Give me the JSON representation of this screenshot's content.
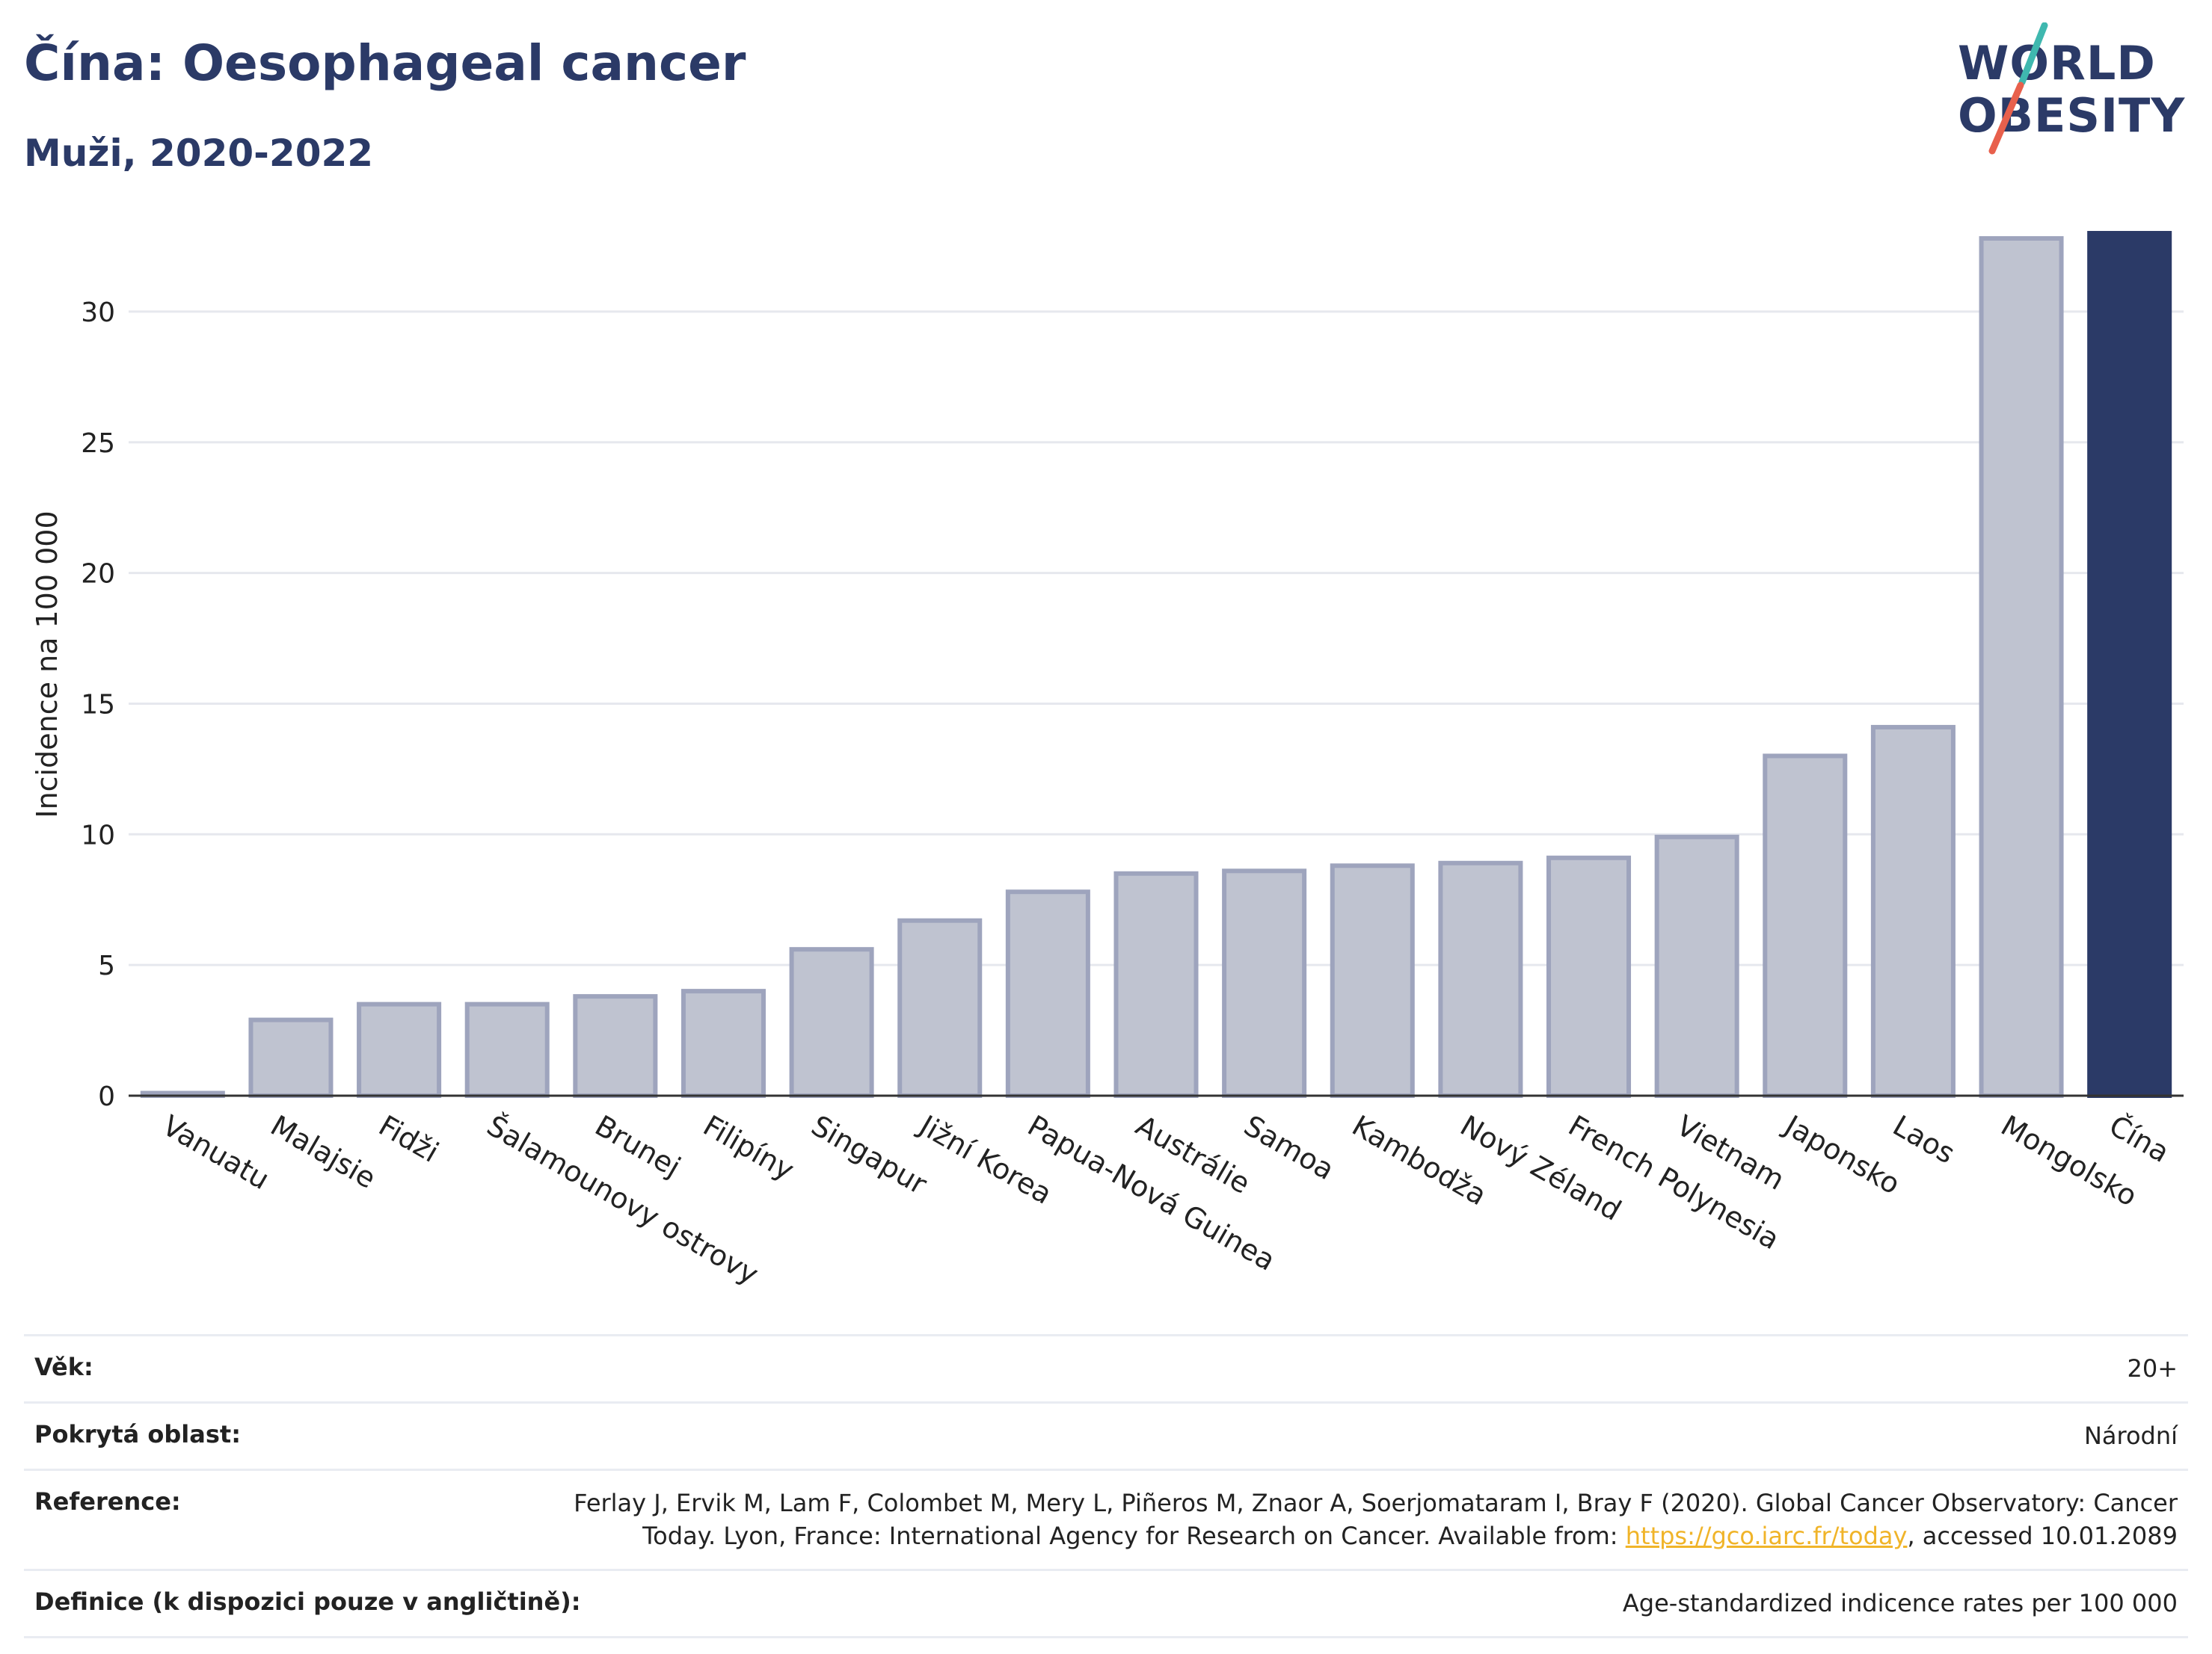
{
  "header": {
    "title": "Čína: Oesophageal cancer",
    "subtitle": "Muži, 2020-2022"
  },
  "logo": {
    "line1": "WORLD",
    "line2": "OBESITY",
    "slash_colors": [
      "#3fb8af",
      "#e8604c"
    ]
  },
  "colors": {
    "bar_default": "#bfc3d0",
    "bar_stroke": "#9ea4bd",
    "bar_highlight": "#2b3a67",
    "grid": "#e6e8ee",
    "axis": "#333333"
  },
  "chart_data": {
    "type": "bar",
    "title": "Čína: Oesophageal cancer",
    "subtitle": "Muži, 2020-2022",
    "ylabel": "Incidence na 100 000",
    "xlabel": "",
    "ylim": [
      0,
      33
    ],
    "yticks": [
      0,
      5,
      10,
      15,
      20,
      25,
      30
    ],
    "grid": true,
    "highlight": "Čína",
    "categories": [
      "Vanuatu",
      "Malajsie",
      "Fidži",
      "Šalamounovy ostrovy",
      "Brunej",
      "Filipíny",
      "Singapur",
      "Jižní Korea",
      "Papua-Nová Guinea",
      "Austrálie",
      "Samoa",
      "Kambodža",
      "Nový Zéland",
      "French Polynesia",
      "Vietnam",
      "Japonsko",
      "Laos",
      "Mongolsko",
      "Čína"
    ],
    "values": [
      0.1,
      2.9,
      3.5,
      3.5,
      3.8,
      4.0,
      5.6,
      6.7,
      7.8,
      8.5,
      8.6,
      8.8,
      8.9,
      9.1,
      9.9,
      13.0,
      14.1,
      32.8,
      33.0
    ]
  },
  "info": {
    "age_label": "Věk:",
    "age_value": "20+",
    "coverage_label": "Pokrytá oblast:",
    "coverage_value": "Národní",
    "reference_label": "Reference:",
    "reference_text_before": "Ferlay J, Ervik M, Lam F, Colombet M, Mery L, Piñeros M, Znaor A, Soerjomataram I, Bray F (2020). Global Cancer Observatory: Cancer Today. Lyon, France: International Agency for Research on Cancer. Available from:",
    "reference_link": "https://gco.iarc.fr/today",
    "reference_text_after": ", accessed 10.01.2089",
    "definition_label": "Definice (k dispozici pouze v angličtině):",
    "definition_value": "Age-standardized indicence rates per 100 000"
  }
}
